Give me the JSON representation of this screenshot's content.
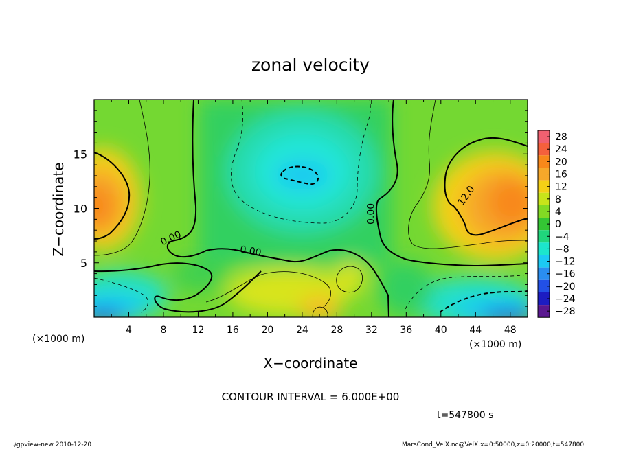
{
  "chart_data": {
    "type": "heatmap",
    "title": "zonal velocity",
    "xlabel": "X−coordinate",
    "ylabel": "Z−coordinate",
    "x_unit_left": "(×1000 m)",
    "x_unit_right": "(×1000 m)",
    "xlim": [
      0,
      50
    ],
    "ylim": [
      0,
      20
    ],
    "x_ticks": [
      4,
      8,
      12,
      16,
      20,
      24,
      28,
      32,
      36,
      40,
      44,
      48
    ],
    "x_tick_labels": [
      "4",
      "8",
      "12",
      "16",
      "20",
      "24",
      "28",
      "32",
      "36",
      "40",
      "44",
      "48"
    ],
    "y_ticks": [
      5,
      10,
      15
    ],
    "y_tick_labels": [
      "5",
      "10",
      "15"
    ],
    "contour_labels": [
      {
        "text": "0.00",
        "x": 9.0,
        "y": 7.0,
        "angle": -25
      },
      {
        "text": "0.00",
        "x": 18.0,
        "y": 5.8,
        "angle": 10
      },
      {
        "text": "0.00",
        "x": 32.3,
        "y": 9.5,
        "angle": -90
      },
      {
        "text": "12.0",
        "x": 43.2,
        "y": 11.0,
        "angle": -55
      }
    ],
    "colorbar": {
      "levels": [
        28,
        24,
        20,
        16,
        12,
        8,
        4,
        0,
        -4,
        -8,
        -12,
        -16,
        -20,
        -24,
        -28
      ],
      "labels": [
        "28",
        "24",
        "20",
        "16",
        "12",
        "8",
        "4",
        "0",
        "−4",
        "−8",
        "−12",
        "−16",
        "−20",
        "−24",
        "−28"
      ],
      "colors": [
        "#f06070",
        "#f5603c",
        "#f8881a",
        "#f6a82a",
        "#f4d016",
        "#c8e41a",
        "#82da24",
        "#34c634",
        "#20d67c",
        "#1ce6cc",
        "#1ccaf4",
        "#2a8ef0",
        "#2250e6",
        "#1c1cc2",
        "#5a1890"
      ]
    },
    "annotation": "CONTOUR INTERVAL = 6.000E+00",
    "time_label": "t=547800 s"
  },
  "footer": {
    "left": "./gpview-new  2010-12-20",
    "right": "MarsCond_VelX.nc@VelX,x=0:50000,z=0:20000,t=547800"
  }
}
